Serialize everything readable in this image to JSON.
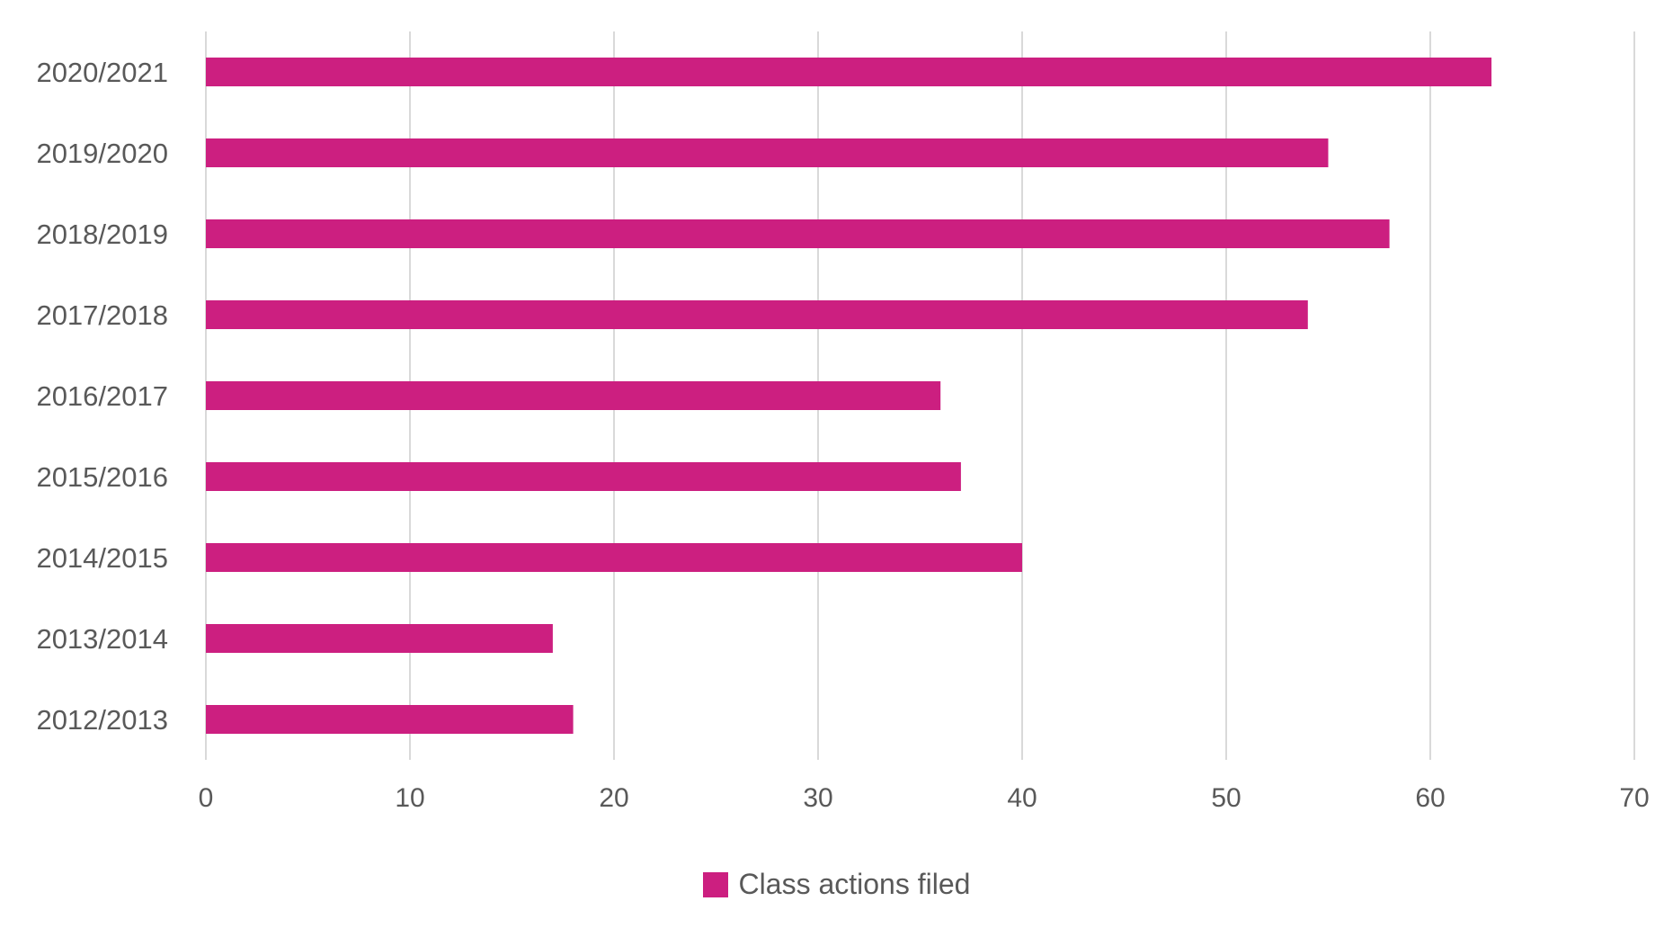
{
  "chart_data": {
    "type": "bar",
    "orientation": "horizontal",
    "categories": [
      "2020/2021",
      "2019/2020",
      "2018/2019",
      "2017/2018",
      "2016/2017",
      "2015/2016",
      "2014/2015",
      "2013/2014",
      "2012/2013"
    ],
    "series": [
      {
        "name": "Class actions filed",
        "values": [
          63,
          55,
          58,
          54,
          36,
          37,
          40,
          17,
          18
        ],
        "color": "#cc1f80"
      }
    ],
    "xlim": [
      0,
      70
    ],
    "x_ticks": [
      "0",
      "10",
      "20",
      "30",
      "40",
      "50",
      "60",
      "70"
    ],
    "grid": "vertical",
    "legend_position": "bottom-center",
    "title": "",
    "xlabel": "",
    "ylabel": ""
  }
}
